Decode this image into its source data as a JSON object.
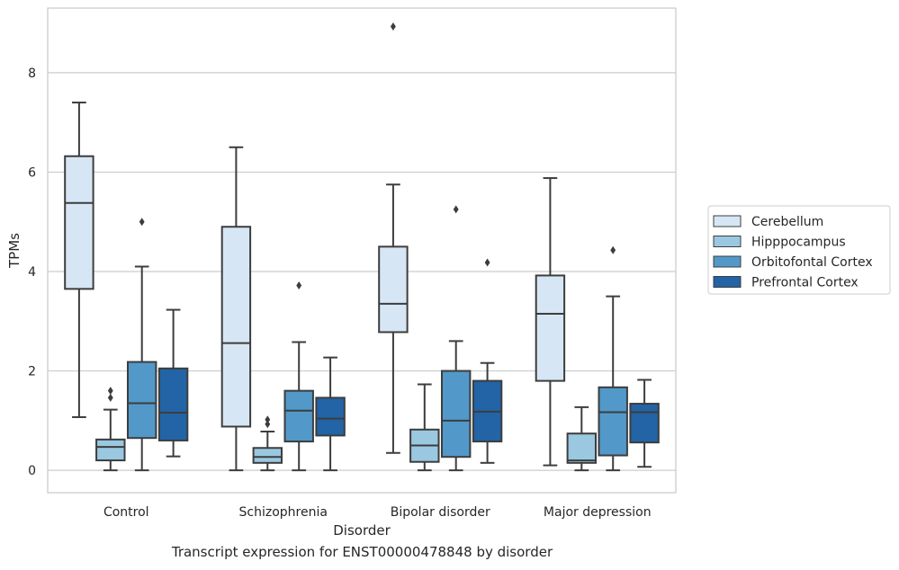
{
  "caption": "Transcript expression for ENST00000478848 by disorder",
  "chart_data": {
    "type": "box",
    "xlabel": "Disorder",
    "ylabel": "TPMs",
    "ylim": [
      -0.45,
      9.3
    ],
    "yticks": [
      0,
      2,
      4,
      6,
      8
    ],
    "grid": true,
    "legend_position": "right",
    "categories": [
      "Control",
      "Schizophrenia",
      "Bipolar disorder",
      "Major depression"
    ],
    "series": [
      {
        "name": "Cerebellum",
        "color": "#d6e6f4",
        "boxes": [
          {
            "whisker_low": 1.07,
            "q1": 3.65,
            "median": 5.38,
            "q3": 6.32,
            "whisker_high": 7.4,
            "outliers": []
          },
          {
            "whisker_low": 0.0,
            "q1": 0.88,
            "median": 2.56,
            "q3": 4.9,
            "whisker_high": 6.5,
            "outliers": []
          },
          {
            "whisker_low": 0.35,
            "q1": 2.78,
            "median": 3.35,
            "q3": 4.5,
            "whisker_high": 5.75,
            "outliers": [
              8.93
            ]
          },
          {
            "whisker_low": 0.1,
            "q1": 1.8,
            "median": 3.15,
            "q3": 3.92,
            "whisker_high": 5.88,
            "outliers": []
          }
        ]
      },
      {
        "name": "Hipppocampus",
        "color": "#9ac8e0",
        "boxes": [
          {
            "whisker_low": 0.0,
            "q1": 0.2,
            "median": 0.47,
            "q3": 0.62,
            "whisker_high": 1.22,
            "outliers": [
              1.46,
              1.6
            ]
          },
          {
            "whisker_low": 0.0,
            "q1": 0.15,
            "median": 0.27,
            "q3": 0.45,
            "whisker_high": 0.78,
            "outliers": [
              0.93,
              1.02
            ]
          },
          {
            "whisker_low": 0.0,
            "q1": 0.17,
            "median": 0.5,
            "q3": 0.82,
            "whisker_high": 1.73,
            "outliers": []
          },
          {
            "whisker_low": 0.0,
            "q1": 0.15,
            "median": 0.2,
            "q3": 0.74,
            "whisker_high": 1.27,
            "outliers": []
          }
        ]
      },
      {
        "name": "Orbitofontal Cortex",
        "color": "#5299c9",
        "boxes": [
          {
            "whisker_low": 0.0,
            "q1": 0.65,
            "median": 1.35,
            "q3": 2.18,
            "whisker_high": 4.1,
            "outliers": [
              5.0
            ]
          },
          {
            "whisker_low": 0.0,
            "q1": 0.58,
            "median": 1.2,
            "q3": 1.6,
            "whisker_high": 2.58,
            "outliers": [
              3.72
            ]
          },
          {
            "whisker_low": 0.0,
            "q1": 0.27,
            "median": 1.0,
            "q3": 2.0,
            "whisker_high": 2.6,
            "outliers": [
              5.25
            ]
          },
          {
            "whisker_low": 0.0,
            "q1": 0.3,
            "median": 1.17,
            "q3": 1.67,
            "whisker_high": 3.5,
            "outliers": [
              4.43
            ]
          }
        ]
      },
      {
        "name": "Prefrontal Cortex",
        "color": "#2264a5",
        "boxes": [
          {
            "whisker_low": 0.28,
            "q1": 0.6,
            "median": 1.16,
            "q3": 2.05,
            "whisker_high": 3.23,
            "outliers": []
          },
          {
            "whisker_low": 0.0,
            "q1": 0.7,
            "median": 1.04,
            "q3": 1.46,
            "whisker_high": 2.27,
            "outliers": []
          },
          {
            "whisker_low": 0.15,
            "q1": 0.58,
            "median": 1.18,
            "q3": 1.8,
            "whisker_high": 2.16,
            "outliers": [
              4.18
            ]
          },
          {
            "whisker_low": 0.07,
            "q1": 0.56,
            "median": 1.17,
            "q3": 1.34,
            "whisker_high": 1.82,
            "outliers": []
          }
        ]
      }
    ]
  }
}
